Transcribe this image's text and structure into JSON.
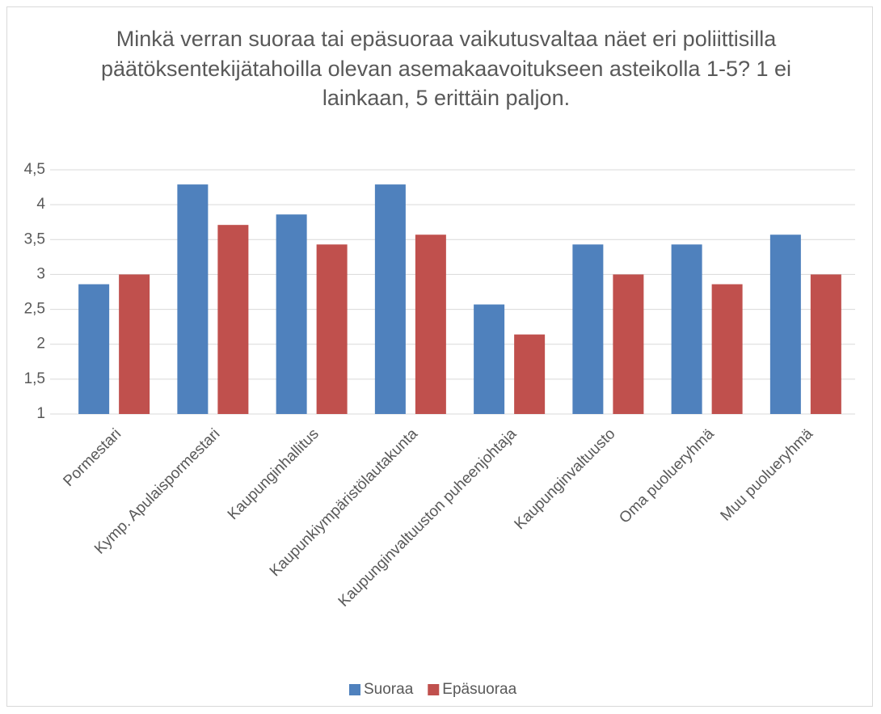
{
  "chart_data": {
    "type": "bar",
    "title": "Minkä verran suoraa tai epäsuoraa vaikutusvaltaa näet eri poliittisilla päätöksentekijätahoilla olevan asemakaavoitukseen asteikolla 1-5? 1 ei lainkaan, 5 erittäin paljon.",
    "categories": [
      "Pormestari",
      "Kymp. Apulaispormestari",
      "Kaupunginhallitus",
      "Kaupunkiympäristölautakunta",
      "Kaupunginvaltuuston puheenjohtaja",
      "Kaupunginvaltuusto",
      "Oma puolueryhmä",
      "Muu puolueryhmä"
    ],
    "series": [
      {
        "name": "Suoraa",
        "color": "#4f81bd",
        "values": [
          2.86,
          4.29,
          3.86,
          4.29,
          2.57,
          3.43,
          3.43,
          3.57
        ]
      },
      {
        "name": "Epäsuoraa",
        "color": "#c0504d",
        "values": [
          3,
          3.71,
          3.43,
          3.57,
          2.14,
          3,
          2.86,
          3
        ]
      }
    ],
    "ylim": [
      1,
      4.5
    ],
    "yticks": [
      1,
      {
        "value": 1.5,
        "label": "1,5"
      },
      2,
      {
        "value": 2.5,
        "label": "2,5"
      },
      3,
      {
        "value": 3.5,
        "label": "3,5"
      },
      4,
      {
        "value": 4.5,
        "label": "4,5"
      }
    ],
    "grid": true,
    "legend": "bottom"
  }
}
